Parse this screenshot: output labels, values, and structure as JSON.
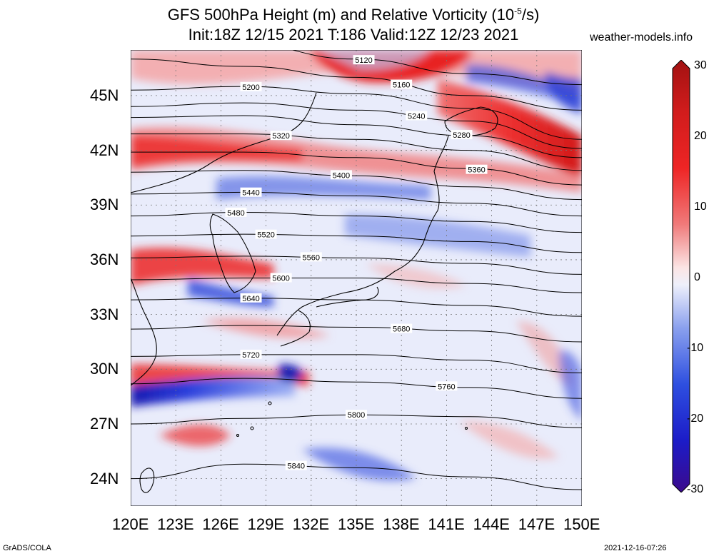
{
  "header": {
    "title_line1": "GFS 500hPa Height (m) and Relative Vorticity (10",
    "title_exp": "-5",
    "title_tail": "/s)",
    "title_line2": "Init:18Z 12/15 2021 T:186 Valid:12Z 12/23 2021",
    "site": "weather-models.info"
  },
  "footer": {
    "left": "GrADS/COLA",
    "right": "2021-12-16-07:26"
  },
  "axes": {
    "lon_labels": [
      "120E",
      "123E",
      "126E",
      "129E",
      "132E",
      "135E",
      "138E",
      "141E",
      "144E",
      "147E",
      "150E"
    ],
    "lat_labels": [
      "45N",
      "42N",
      "39N",
      "36N",
      "33N",
      "30N",
      "27N",
      "24N"
    ],
    "lon_range": [
      120,
      150
    ],
    "lat_range": [
      22.5,
      47.5
    ]
  },
  "colorbar": {
    "labels": [
      "30",
      "20",
      "10",
      "0",
      "-10",
      "-20",
      "-30"
    ],
    "range": [
      -30,
      30
    ],
    "colors": [
      "#3b0a8c",
      "#1e1ecf",
      "#2e5fe8",
      "#7a9cf0",
      "#c8d5f8",
      "#ffffff",
      "#f6c8c8",
      "#f08080",
      "#ec2a2a",
      "#c81818",
      "#a21212"
    ]
  },
  "contours": [
    {
      "label": "5120",
      "lats": [
        48.0,
        47.8,
        47.0,
        46.2,
        45.6
      ]
    },
    {
      "label": "5160",
      "lats": [
        47.0,
        46.6,
        46.0,
        45.0,
        44.2
      ]
    },
    {
      "label": "5200",
      "lats": [
        45.3,
        45.5,
        45.1,
        44.3,
        42.6
      ]
    },
    {
      "label": "5240",
      "lats": [
        44.4,
        44.6,
        44.2,
        43.6,
        42.1
      ]
    },
    {
      "label": "5280",
      "lats": [
        43.8,
        43.9,
        43.4,
        42.8,
        41.6
      ]
    },
    {
      "label": "5320",
      "lats": [
        42.9,
        42.9,
        42.6,
        42.0,
        40.9
      ]
    },
    {
      "label": "5360",
      "lats": [
        41.9,
        41.9,
        41.6,
        41.0,
        40.1
      ]
    },
    {
      "label": "5400",
      "lats": [
        40.8,
        40.9,
        40.6,
        40.0,
        39.3
      ]
    },
    {
      "label": "5440",
      "lats": [
        39.6,
        39.7,
        39.5,
        39.1,
        38.4
      ]
    },
    {
      "label": "5480",
      "lats": [
        38.4,
        38.6,
        38.4,
        38.1,
        37.5
      ]
    },
    {
      "label": "5520",
      "lats": [
        37.3,
        37.4,
        37.3,
        37.0,
        36.4
      ]
    },
    {
      "label": "5560",
      "lats": [
        36.1,
        36.2,
        36.1,
        35.8,
        35.2
      ]
    },
    {
      "label": "5600",
      "lats": [
        34.9,
        35.0,
        35.0,
        34.7,
        34.2
      ]
    },
    {
      "label": "5640",
      "lats": [
        33.8,
        33.9,
        33.8,
        33.5,
        32.9
      ]
    },
    {
      "label": "5680",
      "lats": [
        32.2,
        32.4,
        32.3,
        32.1,
        31.5
      ]
    },
    {
      "label": "5720",
      "lats": [
        30.7,
        30.8,
        30.8,
        30.5,
        29.8
      ]
    },
    {
      "label": "5760",
      "lats": [
        29.2,
        29.5,
        29.3,
        29.0,
        28.4
      ]
    },
    {
      "label": "5800",
      "lats": [
        27.0,
        27.3,
        27.5,
        27.4,
        26.8
      ]
    },
    {
      "label": "5840",
      "lats": [
        24.0,
        24.8,
        24.6,
        24.1,
        23.4
      ]
    }
  ]
}
